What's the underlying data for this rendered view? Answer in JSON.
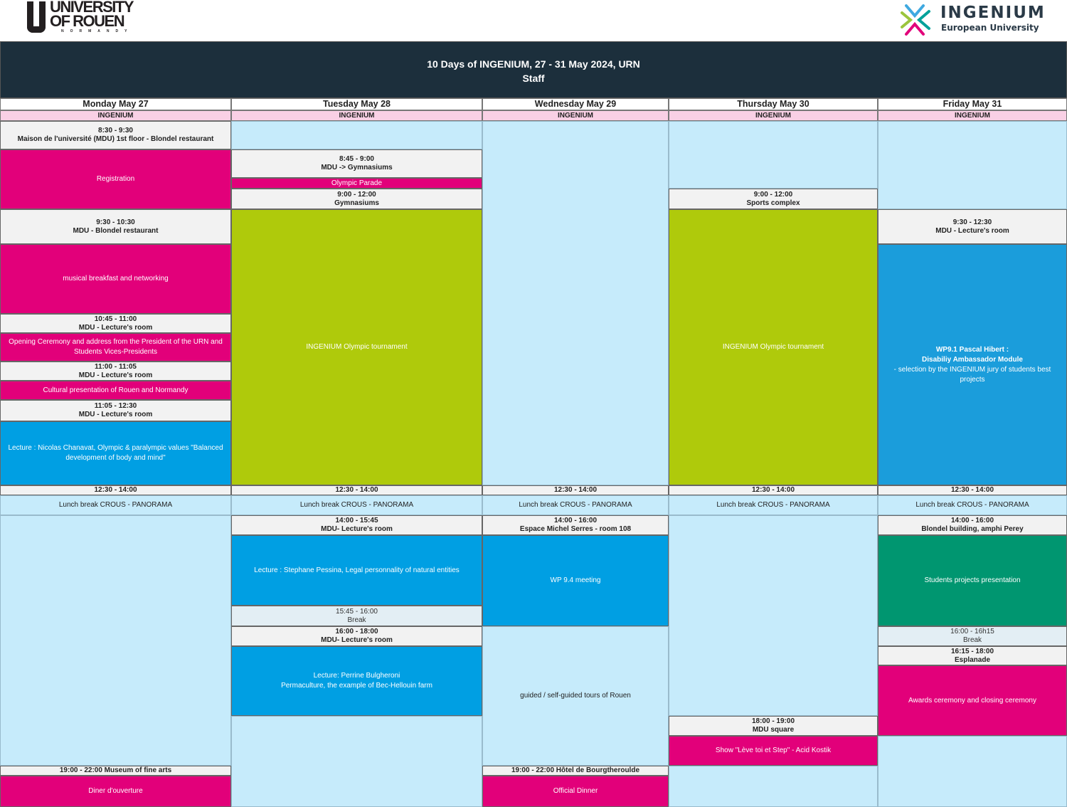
{
  "logos": {
    "left": "UNIVERSITY OF ROUEN NORMANDY",
    "left_l1": "UNIVERSITY",
    "left_l2": "OF ROUEN",
    "left_l3": "NORMANDY",
    "right_l1": "INGENIUM",
    "right_l2": "European University"
  },
  "header": {
    "title": "10 Days of INGENIUM, 27 - 31 May 2024, URN",
    "subtitle": "Staff"
  },
  "colors": {
    "banner": "#1c2f3c",
    "session_magenta": "#e2007a",
    "tournament_green": "#afca0b",
    "lecture_blue": "#009fe3",
    "presentation_teal": "#009670",
    "free_lightblue": "#c6ebfb",
    "tag_pink": "#f9d0e5"
  },
  "days": [
    {
      "name": "Monday May 27",
      "tag": "INGENIUM",
      "blocks": [
        {
          "lines": [
            "8:30 - 9:30",
            "Maison de l'université (MDU) 1st floor - Blondel restaurant"
          ]
        },
        {
          "lines": [
            "Registration"
          ]
        },
        {
          "lines": [
            "9:30 - 10:30",
            "MDU - Blondel restaurant"
          ]
        },
        {
          "lines": [
            "musical breakfast and networking"
          ]
        },
        {
          "lines": [
            "10:45 - 11:00",
            "MDU - Lecture's room"
          ]
        },
        {
          "lines": [
            "Opening Ceremony and address from the President of the URN and Students Vices-Presidents"
          ]
        },
        {
          "lines": [
            "11:00 - 11:05",
            "MDU - Lecture's room"
          ]
        },
        {
          "lines": [
            "Cultural presentation of Rouen and Normandy"
          ]
        },
        {
          "lines": [
            "11:05 - 12:30",
            "MDU - Lecture's room"
          ]
        },
        {
          "lines": [
            "Lecture : Nicolas Chanavat, Olympic & paralympic values \"Balanced development of body and mind\""
          ]
        },
        {
          "lines": [
            "12:30 - 14:00"
          ]
        },
        {
          "lines": [
            "Lunch break  CROUS - PANORAMA"
          ]
        },
        {
          "lines": []
        },
        {
          "lines": [
            "19:00 - 22:00 Museum of fine arts"
          ]
        },
        {
          "lines": [
            "Diner d'ouverture"
          ]
        }
      ]
    },
    {
      "name": "Tuesday May 28",
      "tag": "INGENIUM",
      "blocks": [
        {
          "lines": []
        },
        {
          "lines": [
            "8:45 - 9:00",
            "MDU -> Gymnasiums"
          ]
        },
        {
          "lines": [
            "Olympic Parade"
          ]
        },
        {
          "lines": [
            "9:00 - 12:00",
            "Gymnasiums"
          ]
        },
        {
          "lines": [
            "INGENIUM Olympic tournament"
          ]
        },
        {
          "lines": [
            "12:30 - 14:00"
          ]
        },
        {
          "lines": [
            "Lunch break  CROUS - PANORAMA"
          ]
        },
        {
          "lines": [
            "14:00 - 15:45",
            "MDU- Lecture's room"
          ]
        },
        {
          "lines": [
            "Lecture : Stephane Pessina, Legal personnality of natural entities"
          ]
        },
        {
          "lines": [
            "15:45 - 16:00",
            "Break"
          ]
        },
        {
          "lines": [
            "16:00 - 18:00",
            "MDU- Lecture's room"
          ]
        },
        {
          "lines": [
            "Lecture: Perrine Bulgheroni",
            "Permaculture, the example of Bec-Hellouin farm"
          ]
        },
        {
          "lines": []
        }
      ]
    },
    {
      "name": "Wednesday May 29",
      "tag": "INGENIUM",
      "blocks": [
        {
          "lines": []
        },
        {
          "lines": [
            "12:30 - 14:00"
          ]
        },
        {
          "lines": [
            "Lunch break  CROUS - PANORAMA"
          ]
        },
        {
          "lines": [
            "14:00 - 16:00",
            "Espace Michel Serres - room 108"
          ]
        },
        {
          "lines": [
            "WP 9.4 meeting"
          ]
        },
        {
          "lines": [
            "guided / self-guided tours of Rouen"
          ]
        },
        {
          "lines": [
            "19:00 - 22:00  Hôtel de Bourgtheroulde"
          ]
        },
        {
          "lines": [
            "Official Dinner"
          ]
        }
      ]
    },
    {
      "name": "Thursday May 30",
      "tag": "INGENIUM",
      "blocks": [
        {
          "lines": []
        },
        {
          "lines": [
            "9:00 - 12:00",
            "Sports complex"
          ]
        },
        {
          "lines": [
            "INGENIUM Olympic tournament"
          ]
        },
        {
          "lines": [
            "12:30 - 14:00"
          ]
        },
        {
          "lines": [
            "Lunch break  CROUS - PANORAMA"
          ]
        },
        {
          "lines": []
        },
        {
          "lines": [
            "18:00 - 19:00",
            "MDU square"
          ]
        },
        {
          "lines": [
            "Show \"Lève toi et Step\" - Acid Kostik"
          ]
        },
        {
          "lines": []
        }
      ]
    },
    {
      "name": "Friday May 31",
      "tag": "INGENIUM",
      "blocks": [
        {
          "lines": []
        },
        {
          "lines": [
            "9:30 - 12:30",
            "MDU - Lecture's room"
          ]
        },
        {
          "lines": [
            "WP9.1 Pascal Hibert :",
            "Disabiliy Ambassador Module",
            "-  selection by the INGENIUM jury of students best projects"
          ]
        },
        {
          "lines": [
            "12:30 - 14:00"
          ]
        },
        {
          "lines": [
            "Lunch break  CROUS - PANORAMA"
          ]
        },
        {
          "lines": [
            "14:00 - 16:00",
            "Blondel building, amphi Perey"
          ]
        },
        {
          "lines": [
            "Students projects presentation"
          ]
        },
        {
          "lines": [
            "16:00 - 16h15",
            "Break"
          ]
        },
        {
          "lines": [
            "16:15 - 18:00",
            "Esplanade"
          ]
        },
        {
          "lines": [
            "Awards ceremony and closing ceremony"
          ]
        },
        {
          "lines": []
        }
      ]
    }
  ]
}
